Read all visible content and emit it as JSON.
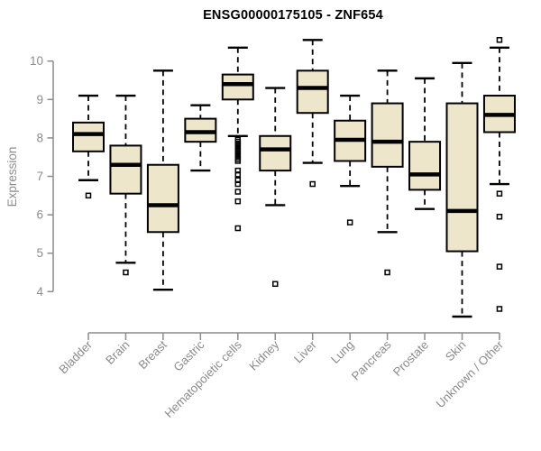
{
  "colors": {
    "background": "#ffffff",
    "box_fill": "#ede6cb",
    "box_stroke": "#000000",
    "median": "#000000",
    "whisker": "#000000",
    "axis": "#8c8c8c",
    "tick_label": "#8c8c8c",
    "title": "#000000"
  },
  "chart_data": {
    "type": "boxplot",
    "title": "ENSG00000175105 - ZNF654",
    "xlabel": "",
    "ylabel": "Expression",
    "ylim": [
      3.2,
      10.7
    ],
    "y_ticks": [
      4,
      5,
      6,
      7,
      8,
      9,
      10
    ],
    "grid": false,
    "legend": "none",
    "categories": [
      "Bladder",
      "Brain",
      "Breast",
      "Gastric",
      "Hematopoietic cells",
      "Kidney",
      "Liver",
      "Lung",
      "Pancreas",
      "Prostate",
      "Skin",
      "Unknown / Other"
    ],
    "series": [
      {
        "name": "Bladder",
        "whisker_low": 6.9,
        "q1": 7.65,
        "median": 8.1,
        "q3": 8.4,
        "whisker_high": 9.1,
        "outliers": [
          6.5
        ]
      },
      {
        "name": "Brain",
        "whisker_low": 4.75,
        "q1": 6.55,
        "median": 7.3,
        "q3": 7.8,
        "whisker_high": 9.1,
        "outliers": [
          4.5
        ]
      },
      {
        "name": "Breast",
        "whisker_low": 4.05,
        "q1": 5.55,
        "median": 6.25,
        "q3": 7.3,
        "whisker_high": 9.75,
        "outliers": []
      },
      {
        "name": "Gastric",
        "whisker_low": 7.15,
        "q1": 7.9,
        "median": 8.15,
        "q3": 8.5,
        "whisker_high": 8.85,
        "outliers": []
      },
      {
        "name": "Hematopoietic cells",
        "whisker_low": 8.05,
        "q1": 9.0,
        "median": 9.4,
        "q3": 9.65,
        "whisker_high": 10.35,
        "outliers": [
          7.95,
          7.9,
          7.85,
          7.8,
          7.75,
          7.7,
          7.65,
          7.6,
          7.55,
          7.5,
          7.45,
          7.4,
          7.15,
          7.05,
          6.9,
          6.8,
          6.6,
          6.35,
          5.65
        ]
      },
      {
        "name": "Kidney",
        "whisker_low": 6.25,
        "q1": 7.15,
        "median": 7.7,
        "q3": 8.05,
        "whisker_high": 9.3,
        "outliers": [
          4.2
        ]
      },
      {
        "name": "Liver",
        "whisker_low": 7.35,
        "q1": 8.65,
        "median": 9.3,
        "q3": 9.75,
        "whisker_high": 10.55,
        "outliers": [
          6.8
        ]
      },
      {
        "name": "Lung",
        "whisker_low": 6.75,
        "q1": 7.4,
        "median": 7.95,
        "q3": 8.45,
        "whisker_high": 9.1,
        "outliers": [
          5.8
        ]
      },
      {
        "name": "Pancreas",
        "whisker_low": 5.55,
        "q1": 7.25,
        "median": 7.9,
        "q3": 8.9,
        "whisker_high": 9.75,
        "outliers": [
          4.5
        ]
      },
      {
        "name": "Prostate",
        "whisker_low": 6.15,
        "q1": 6.65,
        "median": 7.05,
        "q3": 7.9,
        "whisker_high": 9.55,
        "outliers": []
      },
      {
        "name": "Skin",
        "whisker_low": 3.35,
        "q1": 5.05,
        "median": 6.1,
        "q3": 8.9,
        "whisker_high": 9.95,
        "outliers": []
      },
      {
        "name": "Unknown / Other",
        "whisker_low": 6.8,
        "q1": 8.15,
        "median": 8.6,
        "q3": 9.1,
        "whisker_high": 10.35,
        "outliers": [
          10.55,
          6.55,
          5.95,
          4.65,
          3.55
        ]
      }
    ]
  }
}
